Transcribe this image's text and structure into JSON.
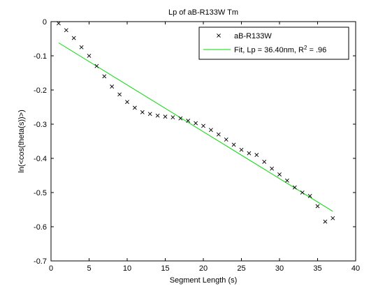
{
  "chart_data": {
    "type": "scatter",
    "title": "Lp of aB-R133W Tm",
    "xlabel": "Segment Length (s)",
    "ylabel": "ln(<cos(theta(s))>)",
    "xlim": [
      0,
      40
    ],
    "ylim": [
      -0.7,
      0
    ],
    "xticks": [
      0,
      5,
      10,
      15,
      20,
      25,
      30,
      35,
      40
    ],
    "yticks": [
      0,
      -0.1,
      -0.2,
      -0.3,
      -0.4,
      -0.5,
      -0.6,
      -0.7
    ],
    "xtick_labels": [
      "0",
      "5",
      "10",
      "15",
      "20",
      "25",
      "30",
      "35",
      "40"
    ],
    "ytick_labels": [
      "0",
      "-0.1",
      "-0.2",
      "-0.3",
      "-0.4",
      "-0.5",
      "-0.6",
      "-0.7"
    ],
    "grid": false,
    "legend_position": "top-right",
    "series": [
      {
        "name": "aB-R133W",
        "type": "scatter",
        "marker": "x",
        "color": "#000000",
        "x": [
          1,
          2,
          3,
          4,
          5,
          6,
          7,
          8,
          9,
          10,
          11,
          12,
          13,
          14,
          15,
          16,
          17,
          18,
          19,
          20,
          21,
          22,
          23,
          24,
          25,
          26,
          27,
          28,
          29,
          30,
          31,
          32,
          33,
          34,
          35,
          36,
          37
        ],
        "y": [
          -0.005,
          -0.025,
          -0.048,
          -0.075,
          -0.1,
          -0.13,
          -0.16,
          -0.19,
          -0.213,
          -0.235,
          -0.252,
          -0.265,
          -0.27,
          -0.275,
          -0.278,
          -0.28,
          -0.283,
          -0.29,
          -0.297,
          -0.305,
          -0.317,
          -0.33,
          -0.345,
          -0.36,
          -0.375,
          -0.385,
          -0.39,
          -0.41,
          -0.43,
          -0.447,
          -0.465,
          -0.485,
          -0.5,
          -0.51,
          -0.54,
          -0.585,
          -0.575
        ]
      },
      {
        "name": "Fit, Lp = 36.40nm, R",
        "name_superscript": "2",
        "name_suffix": " = .96",
        "type": "line",
        "color": "#00dd00",
        "x": [
          1,
          37
        ],
        "y": [
          -0.062,
          -0.555
        ]
      }
    ]
  }
}
